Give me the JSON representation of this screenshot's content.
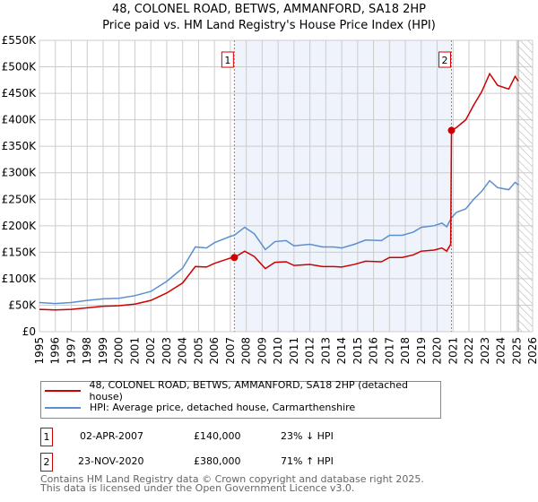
{
  "chart_data": {
    "type": "line",
    "title": "48, COLONEL ROAD, BETWS, AMMANFORD, SA18 2HP",
    "subtitle": "Price paid vs. HM Land Registry's House Price Index (HPI)",
    "xlim": [
      1995,
      2026
    ],
    "ylim": [
      0,
      550000
    ],
    "x_ticks": [
      "1995",
      "1996",
      "1997",
      "1998",
      "1999",
      "2000",
      "2001",
      "2002",
      "2003",
      "2004",
      "2005",
      "2006",
      "2007",
      "2008",
      "2009",
      "2010",
      "2011",
      "2012",
      "2013",
      "2014",
      "2015",
      "2016",
      "2017",
      "2018",
      "2019",
      "2020",
      "2021",
      "2022",
      "2023",
      "2024",
      "2025",
      "2026"
    ],
    "y_ticks": [
      {
        "v": 0,
        "l": "£0"
      },
      {
        "v": 50000,
        "l": "£50K"
      },
      {
        "v": 100000,
        "l": "£100K"
      },
      {
        "v": 150000,
        "l": "£150K"
      },
      {
        "v": 200000,
        "l": "£200K"
      },
      {
        "v": 250000,
        "l": "£250K"
      },
      {
        "v": 300000,
        "l": "£300K"
      },
      {
        "v": 350000,
        "l": "£350K"
      },
      {
        "v": 400000,
        "l": "£400K"
      },
      {
        "v": 450000,
        "l": "£450K"
      },
      {
        "v": 500000,
        "l": "£500K"
      },
      {
        "v": 550000,
        "l": "£550K"
      }
    ],
    "grid": true,
    "shaded_range": [
      2007.25,
      2020.9
    ],
    "forecast_hatch_from": 2025.1,
    "series": [
      {
        "name": "48, COLONEL ROAD, BETWS, AMMANFORD, SA18 2HP (detached house)",
        "color": "#cc0000",
        "x": [
          1995,
          1996,
          1997,
          1998,
          1999,
          2000,
          2001,
          2002,
          2003,
          2004,
          2004.8,
          2005.5,
          2006,
          2007,
          2007.25,
          2007.9,
          2008.5,
          2009.2,
          2009.8,
          2010.5,
          2011,
          2012,
          2012.8,
          2013.5,
          2014,
          2014.8,
          2015.5,
          2016.5,
          2017,
          2017.8,
          2018.5,
          2019,
          2019.8,
          2020.3,
          2020.6,
          2020.85,
          2020.9,
          2021.2,
          2021.8,
          2022.3,
          2022.8,
          2023.3,
          2023.8,
          2024.5,
          2024.9,
          2025.1
        ],
        "y": [
          42000,
          41000,
          42000,
          45000,
          48000,
          49000,
          52000,
          59000,
          73000,
          92000,
          123000,
          122000,
          129000,
          139000,
          140000,
          152000,
          142000,
          119000,
          131000,
          132000,
          125000,
          127000,
          123000,
          123000,
          122000,
          127000,
          133000,
          132000,
          140000,
          140000,
          145000,
          152000,
          154000,
          158000,
          152000,
          165000,
          380000,
          385000,
          400000,
          428000,
          453000,
          487000,
          465000,
          458000,
          482000,
          473000
        ]
      },
      {
        "name": "HPI: Average price, detached house, Carmarthenshire",
        "color": "#5b8fd0",
        "x": [
          1995,
          1996,
          1997,
          1998,
          1999,
          2000,
          2001,
          2002,
          2003,
          2004,
          2004.8,
          2005.5,
          2006,
          2007,
          2007.25,
          2007.9,
          2008.5,
          2009.2,
          2009.8,
          2010.5,
          2011,
          2012,
          2012.8,
          2013.5,
          2014,
          2014.8,
          2015.5,
          2016.5,
          2017,
          2017.8,
          2018.5,
          2019,
          2019.8,
          2020.3,
          2020.6,
          2020.9,
          2021.2,
          2021.8,
          2022.3,
          2022.8,
          2023.3,
          2023.8,
          2024.5,
          2024.9,
          2025.1
        ],
        "y": [
          55000,
          53000,
          55000,
          59000,
          62000,
          63000,
          68000,
          76000,
          95000,
          120000,
          160000,
          158000,
          168000,
          180000,
          182000,
          197000,
          185000,
          155000,
          170000,
          172000,
          162000,
          165000,
          160000,
          160000,
          158000,
          165000,
          173000,
          172000,
          182000,
          182000,
          188000,
          197000,
          200000,
          205000,
          198000,
          215000,
          225000,
          232000,
          250000,
          265000,
          285000,
          272000,
          268000,
          282000,
          277000
        ]
      }
    ],
    "sales": [
      {
        "label": "1",
        "x": 2007.25,
        "y": 140000,
        "date": "02-APR-2007",
        "price": "£140,000",
        "hpi": "23% ↓ HPI"
      },
      {
        "label": "2",
        "x": 2020.9,
        "y": 380000,
        "date": "23-NOV-2020",
        "price": "£380,000",
        "hpi": "71% ↑ HPI"
      }
    ]
  },
  "footer": {
    "line1": "Contains HM Land Registry data © Crown copyright and database right 2025.",
    "line2": "This data is licensed under the Open Government Licence v3.0."
  }
}
